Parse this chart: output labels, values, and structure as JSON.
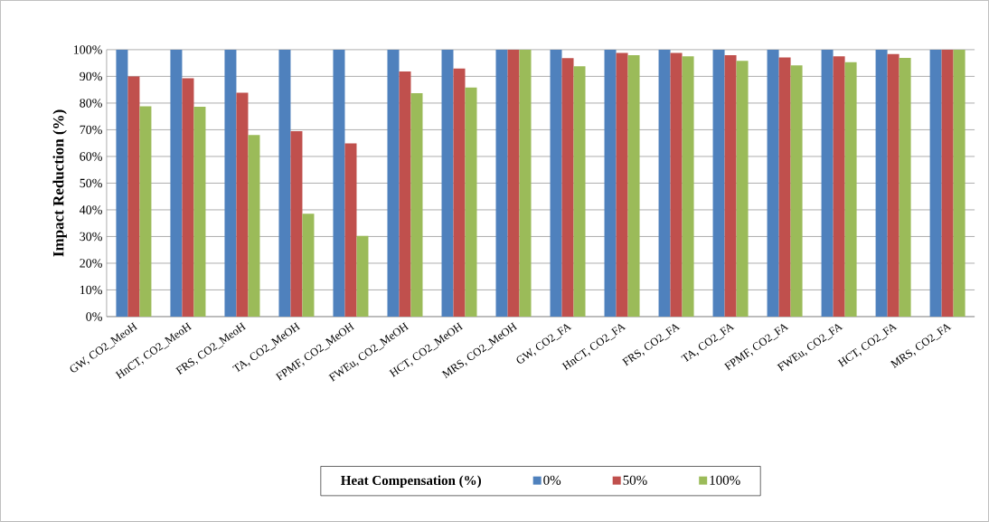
{
  "chart_data": {
    "type": "bar",
    "ylabel": "Impact Reduction (%)",
    "legend_title": "Heat Compensation (%)",
    "categories": [
      "GW, CO2_MeoH",
      "HnCT, CO2_MeoH",
      "FRS, CO2_MeoH",
      "TA, CO2_MeOH",
      "FPMF, CO2_MeOH",
      "FWEu, CO2_MeOH",
      "HCT, CO2_MeOH",
      "MRS, CO2_MeOH",
      "GW, CO2_FA",
      "HnCT, CO2_FA",
      "FRS, CO2_FA",
      "TA, CO2_FA",
      "FPMF, CO2_FA",
      "FWEu, CO2_FA",
      "HCT, CO2_FA",
      "MRS, CO2_FA"
    ],
    "series": [
      {
        "name": "0%",
        "color": "#4f81bd",
        "values": [
          100,
          100,
          100,
          100,
          100,
          100,
          100,
          100,
          100,
          100,
          100,
          100,
          100,
          100,
          100,
          100
        ]
      },
      {
        "name": "50%",
        "color": "#c0504d",
        "values": [
          90,
          89.3,
          83.9,
          69.5,
          64.9,
          91.8,
          92.9,
          100,
          96.8,
          98.8,
          98.8,
          97.9,
          97.1,
          97.5,
          98.4,
          100
        ]
      },
      {
        "name": "100%",
        "color": "#9bbb59",
        "values": [
          78.8,
          78.6,
          68,
          38.5,
          30.2,
          83.7,
          85.8,
          100,
          93.8,
          97.9,
          97.5,
          95.8,
          94.1,
          95.3,
          96.9,
          100
        ]
      }
    ],
    "ylim": [
      0,
      100
    ],
    "yticks": [
      {
        "value": 0,
        "label": "0%"
      },
      {
        "value": 10,
        "label": "10%"
      },
      {
        "value": 20,
        "label": "20%"
      },
      {
        "value": 30,
        "label": "30%"
      },
      {
        "value": 40,
        "label": "40%"
      },
      {
        "value": 50,
        "label": "50%"
      },
      {
        "value": 60,
        "label": "60%"
      },
      {
        "value": 70,
        "label": "70%"
      },
      {
        "value": 80,
        "label": "80%"
      },
      {
        "value": 90,
        "label": "90%"
      },
      {
        "value": 100,
        "label": "100%"
      }
    ],
    "grid": "y",
    "legend": "bottom"
  }
}
